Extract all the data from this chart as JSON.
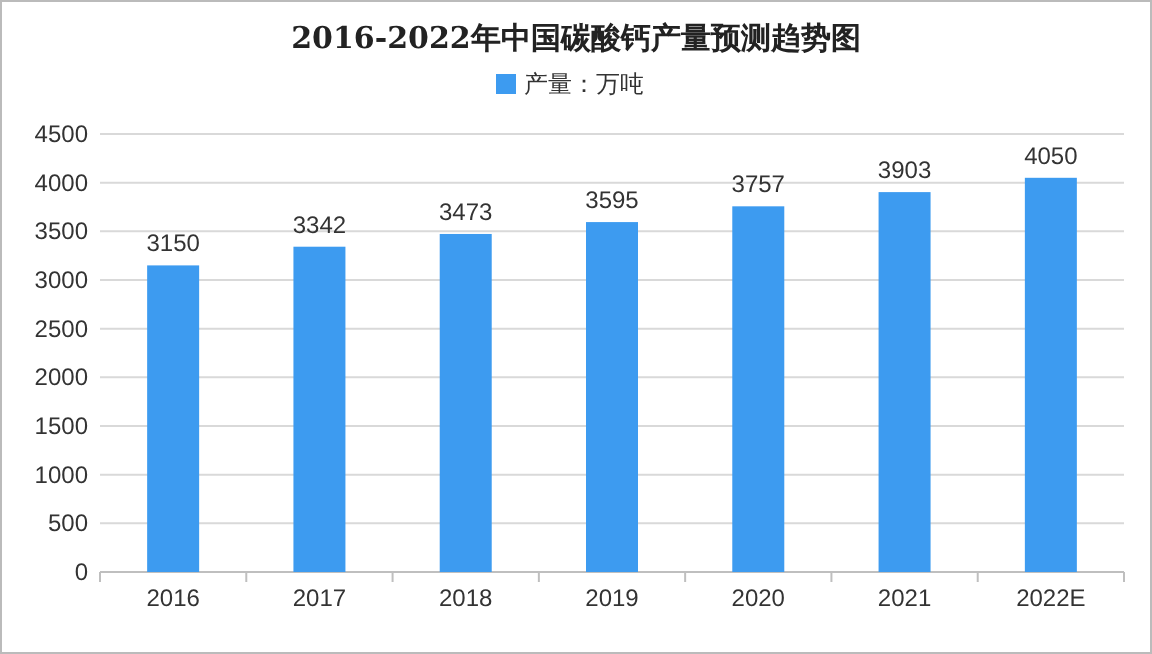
{
  "chart_data": {
    "type": "bar",
    "title": "2016-2022年中国碳酸钙产量预测趋势图",
    "categories": [
      "2016",
      "2017",
      "2018",
      "2019",
      "2020",
      "2021",
      "2022E"
    ],
    "series": [
      {
        "name": "产量：万吨",
        "color": "#3d9bf0",
        "values": [
          3150,
          3342,
          3473,
          3595,
          3757,
          3903,
          4050
        ]
      }
    ],
    "ylim": [
      0,
      4500
    ],
    "yticks": [
      0,
      500,
      1000,
      1500,
      2000,
      2500,
      3000,
      3500,
      4000,
      4500
    ],
    "grid": "y",
    "legend": "top",
    "data_labels": true
  }
}
